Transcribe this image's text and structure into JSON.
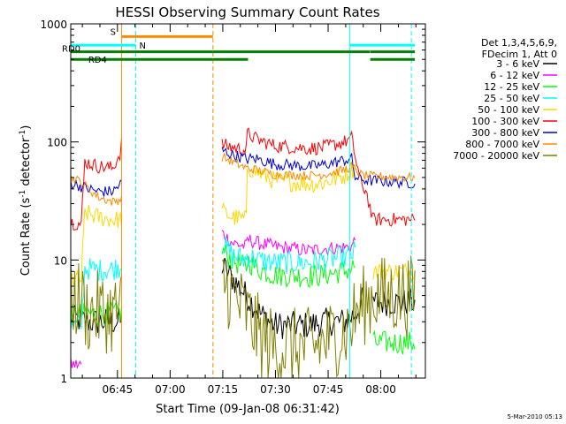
{
  "chart_data": {
    "type": "line",
    "title": "HESSI Observing Summary Count Rates",
    "xlabel": "Start Time (09-Jan-08 06:31:42)",
    "ylabel_parts": [
      "Count Rate (s",
      "-1",
      " detector",
      "-1",
      ")"
    ],
    "x_units": "minutes since 06:31:42",
    "xlim": [
      0,
      101
    ],
    "ylim": [
      1,
      1000
    ],
    "y_scale": "log",
    "grid": false,
    "x_ticks": [
      {
        "label": "06:45",
        "value": 13.3
      },
      {
        "label": "07:00",
        "value": 28.3
      },
      {
        "label": "07:15",
        "value": 43.3
      },
      {
        "label": "07:30",
        "value": 58.3
      },
      {
        "label": "07:45",
        "value": 73.3
      },
      {
        "label": "08:00",
        "value": 88.3
      }
    ],
    "y_ticks": [
      {
        "label": "1",
        "value": 1
      },
      {
        "label": "10",
        "value": 10
      },
      {
        "label": "100",
        "value": 100
      },
      {
        "label": "1000",
        "value": 1000
      }
    ],
    "legend": {
      "placement": "right",
      "header": [
        "Det 1,3,4,5,6,9,",
        "FDecim 1, Att 0"
      ]
    },
    "flags": [
      {
        "label": "S",
        "color": "#ff8c00",
        "y": 780,
        "segments": [
          [
            14.5,
            40.5
          ]
        ]
      },
      {
        "label": "N",
        "color": "#00ffff",
        "y": 660,
        "segments": [
          [
            0,
            18.5
          ],
          [
            79.5,
            98
          ]
        ]
      },
      {
        "label": "RD0",
        "color": "#008000",
        "y": 580,
        "segments": [
          [
            0,
            40.5
          ],
          [
            40.5,
            50.5
          ],
          [
            50.5,
            85.2
          ],
          [
            85.3,
            98
          ]
        ]
      },
      {
        "label": "RD4",
        "color": "#008000",
        "y": 500,
        "segments": [
          [
            0,
            40.5
          ],
          [
            40.5,
            50.5
          ],
          [
            85.3,
            98
          ]
        ]
      }
    ],
    "vlines": [
      {
        "x": 14.5,
        "color": "#ff8c00",
        "style": "solid"
      },
      {
        "x": 18.5,
        "color": "#00ffff",
        "style": "dashed"
      },
      {
        "x": 40.5,
        "color": "#ff8c00",
        "style": "dashed"
      },
      {
        "x": 79.5,
        "color": "#00ffff",
        "style": "solid"
      },
      {
        "x": 97.0,
        "color": "#00ffff",
        "style": "dashed"
      }
    ],
    "series": [
      {
        "name": "3 - 6 keV",
        "color": "#000000",
        "noise": 0.12,
        "points": [
          [
            0,
            3.2
          ],
          [
            5,
            3
          ],
          [
            10,
            3
          ],
          [
            14.5,
            3
          ],
          [
            14.6,
            null
          ],
          [
            43,
            null
          ],
          [
            43.1,
            9
          ],
          [
            46,
            7
          ],
          [
            50,
            5
          ],
          [
            54,
            3.5
          ],
          [
            58,
            2.8
          ],
          [
            68,
            2.8
          ],
          [
            72,
            3
          ],
          [
            78,
            3
          ],
          [
            81,
            3.5
          ],
          [
            83,
            4.5
          ],
          [
            84,
            null
          ],
          [
            86,
            null
          ],
          [
            86.1,
            4.4
          ],
          [
            98,
            4.4
          ]
        ]
      },
      {
        "name": "6 - 12 keV",
        "color": "#ff00ff",
        "noise": 0.06,
        "points": [
          [
            0,
            1.3
          ],
          [
            3,
            1.3
          ],
          [
            3.1,
            null
          ],
          [
            43,
            null
          ],
          [
            43.1,
            17
          ],
          [
            46,
            14
          ],
          [
            50,
            13
          ],
          [
            50.3,
            15
          ],
          [
            53,
            14
          ],
          [
            58,
            13
          ],
          [
            68,
            12
          ],
          [
            72,
            12.5
          ],
          [
            78,
            12.8
          ],
          [
            80,
            13
          ],
          [
            81,
            15
          ],
          [
            83,
            null
          ],
          [
            98,
            null
          ]
        ]
      },
      {
        "name": "12 - 25 keV",
        "color": "#00ff00",
        "noise": 0.1,
        "points": [
          [
            0,
            3.4
          ],
          [
            3,
            3.5
          ],
          [
            5,
            3.5
          ],
          [
            10,
            3.5
          ],
          [
            14.5,
            3.6
          ],
          [
            14.6,
            null
          ],
          [
            43,
            null
          ],
          [
            43.1,
            12
          ],
          [
            46,
            10
          ],
          [
            50,
            8.5
          ],
          [
            50.3,
            10
          ],
          [
            53,
            8.5
          ],
          [
            58,
            7.5
          ],
          [
            68,
            7.3
          ],
          [
            72,
            7.5
          ],
          [
            78,
            8
          ],
          [
            80,
            8.5
          ],
          [
            81,
            9
          ],
          [
            83,
            null
          ],
          [
            86,
            null
          ],
          [
            86.1,
            2
          ],
          [
            90,
            2
          ],
          [
            98,
            2
          ]
        ]
      },
      {
        "name": "25 - 50 keV",
        "color": "#00ffff",
        "noise": 0.1,
        "points": [
          [
            0,
            2.7
          ],
          [
            3,
            2.8
          ],
          [
            4,
            8.5
          ],
          [
            8,
            8.2
          ],
          [
            12,
            8.4
          ],
          [
            14.5,
            9
          ],
          [
            14.6,
            null
          ],
          [
            43,
            null
          ],
          [
            43.1,
            14
          ],
          [
            46,
            11
          ],
          [
            50,
            10
          ],
          [
            50.3,
            11
          ],
          [
            53,
            10
          ],
          [
            58,
            9.5
          ],
          [
            68,
            9.5
          ],
          [
            72,
            10
          ],
          [
            78,
            10.5
          ],
          [
            80,
            11
          ],
          [
            81,
            12
          ],
          [
            83,
            null
          ],
          [
            98,
            null
          ]
        ]
      },
      {
        "name": "50 - 100 keV",
        "color": "#ffd700",
        "noise": 0.08,
        "points": [
          [
            0,
            7
          ],
          [
            3,
            6.8
          ],
          [
            4,
            25
          ],
          [
            8,
            23
          ],
          [
            12,
            22
          ],
          [
            14.5,
            22
          ],
          [
            14.6,
            null
          ],
          [
            43,
            null
          ],
          [
            43.1,
            26
          ],
          [
            46,
            23
          ],
          [
            50,
            22
          ],
          [
            50.3,
            62
          ],
          [
            53,
            55
          ],
          [
            58,
            47
          ],
          [
            68,
            44
          ],
          [
            72,
            45
          ],
          [
            78,
            52
          ],
          [
            80,
            58
          ],
          [
            81,
            60
          ],
          [
            83,
            null
          ],
          [
            86,
            null
          ],
          [
            86.1,
            8
          ],
          [
            98,
            8
          ]
        ]
      },
      {
        "name": "100 - 300 keV",
        "color": "#ff0000",
        "noise": 0.06,
        "points": [
          [
            0,
            21
          ],
          [
            3,
            20
          ],
          [
            4,
            68
          ],
          [
            8,
            62
          ],
          [
            12,
            60
          ],
          [
            14,
            80
          ],
          [
            14.5,
            105
          ],
          [
            14.6,
            null
          ],
          [
            43,
            null
          ],
          [
            43.1,
            95
          ],
          [
            46,
            90
          ],
          [
            50,
            85
          ],
          [
            50.3,
            118
          ],
          [
            53,
            105
          ],
          [
            58,
            93
          ],
          [
            68,
            88
          ],
          [
            72,
            90
          ],
          [
            78,
            100
          ],
          [
            80,
            108
          ],
          [
            81,
            75
          ],
          [
            83,
            40
          ],
          [
            84,
            40
          ],
          [
            86,
            22
          ],
          [
            98,
            22
          ]
        ]
      },
      {
        "name": "300 - 800 keV",
        "color": "#0000cd",
        "noise": 0.05,
        "points": [
          [
            0,
            45
          ],
          [
            3,
            42
          ],
          [
            5,
            40
          ],
          [
            8,
            38
          ],
          [
            12,
            38
          ],
          [
            14.5,
            45
          ],
          [
            14.6,
            null
          ],
          [
            43,
            null
          ],
          [
            43.1,
            85
          ],
          [
            46,
            78
          ],
          [
            50,
            72
          ],
          [
            53,
            72
          ],
          [
            58,
            65
          ],
          [
            68,
            62
          ],
          [
            72,
            64
          ],
          [
            78,
            70
          ],
          [
            80,
            72
          ],
          [
            81,
            50
          ],
          [
            83,
            48
          ],
          [
            86,
            47
          ],
          [
            98,
            45
          ]
        ]
      },
      {
        "name": "800 - 7000 keV",
        "color": "#ff8c00",
        "noise": 0.04,
        "points": [
          [
            0,
            50
          ],
          [
            3,
            46
          ],
          [
            5,
            40
          ],
          [
            8,
            34
          ],
          [
            12,
            31
          ],
          [
            14.5,
            33
          ],
          [
            14.6,
            null
          ],
          [
            43,
            null
          ],
          [
            43.1,
            75
          ],
          [
            46,
            68
          ],
          [
            50,
            60
          ],
          [
            53,
            58
          ],
          [
            58,
            53
          ],
          [
            68,
            52
          ],
          [
            72,
            53
          ],
          [
            78,
            58
          ],
          [
            80,
            62
          ],
          [
            81,
            58
          ],
          [
            83,
            52
          ],
          [
            86,
            51
          ],
          [
            98,
            50
          ]
        ]
      },
      {
        "name": "7000 - 20000 keV",
        "color": "#808000",
        "noise": 0.35,
        "points": [
          [
            0,
            4.8
          ],
          [
            3,
            4.5
          ],
          [
            5,
            3.5
          ],
          [
            8,
            3.7
          ],
          [
            12,
            3.5
          ],
          [
            14.5,
            4
          ],
          [
            14.6,
            null
          ],
          [
            43,
            null
          ],
          [
            43.1,
            7
          ],
          [
            46,
            5
          ],
          [
            50,
            3.5
          ],
          [
            54,
            2.2
          ],
          [
            58,
            1.8
          ],
          [
            68,
            1.8
          ],
          [
            72,
            2
          ],
          [
            78,
            2.5
          ],
          [
            80,
            2.8
          ],
          [
            81,
            3.5
          ],
          [
            83,
            4
          ],
          [
            86,
            5
          ],
          [
            98,
            5
          ]
        ]
      }
    ]
  },
  "footer_stamp": "5-Mar-2010 05:13"
}
